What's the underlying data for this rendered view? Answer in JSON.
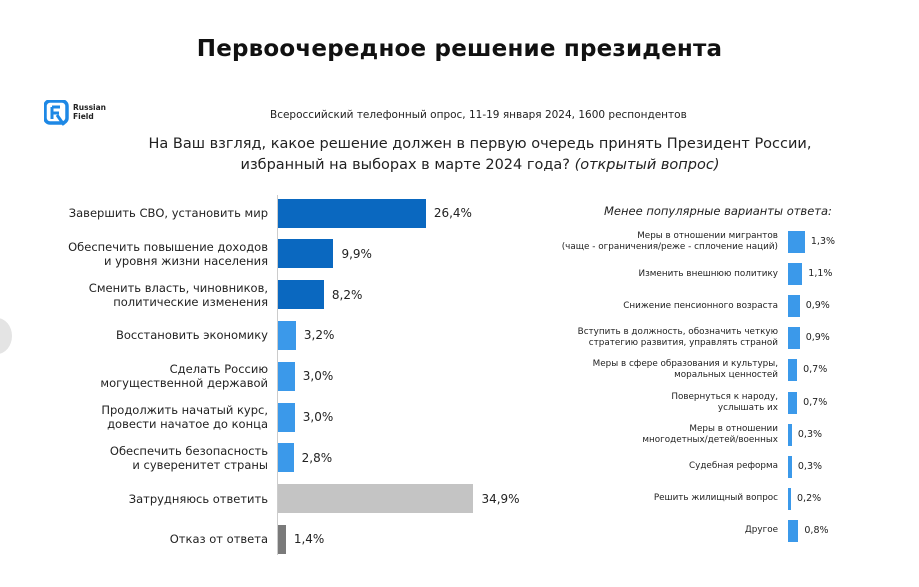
{
  "title": "Первоочередное решение президента",
  "logo": {
    "line1": "Russian",
    "line2": "Field",
    "brand_color": "#1e88e5"
  },
  "subtitle": "Всероссийский телефонный опрос, 11-19 января 2024, 1600 респондентов",
  "question": {
    "text": "На Ваш взгляд, какое решение должен в первую очередь принять Президент России, избранный на выборах в марте 2024 года?",
    "note": "(открытый вопрос)"
  },
  "colors": {
    "dark_blue": "#0a68c0",
    "light_blue": "#3b99ea",
    "gray": "#c4c4c4",
    "dark_gray": "#7a7a7a"
  },
  "chart_data": [
    {
      "type": "bar",
      "orientation": "horizontal",
      "categories": [
        "Завершить СВО, установить мир",
        "Обеспечить повышение доходов\nи уровня жизни населения",
        "Сменить власть, чиновников,\nполитические изменения",
        "Восстановить экономику",
        "Сделать Россию\nмогущественной державой",
        "Продолжить начатый курс,\nдовести начатое до конца",
        "Обеспечить безопасность\nи суверенитет страны",
        "Затрудняюсь ответить",
        "Отказ от ответа"
      ],
      "values": [
        26.4,
        9.9,
        8.2,
        3.2,
        3.0,
        3.0,
        2.8,
        34.9,
        1.4
      ],
      "labels": [
        "26,4%",
        "9,9%",
        "8,2%",
        "3,2%",
        "3,0%",
        "3,0%",
        "2,8%",
        "34,9%",
        "1,4%"
      ],
      "bar_colors": [
        "dark_blue",
        "dark_blue",
        "dark_blue",
        "light_blue",
        "light_blue",
        "light_blue",
        "light_blue",
        "gray",
        "dark_gray"
      ],
      "unit": "%"
    },
    {
      "type": "bar",
      "orientation": "horizontal",
      "title": "Менее популярные варианты ответа:",
      "categories": [
        "Меры в отношении мигрантов\n(чаще - ограничения/реже - сплочение наций)",
        "Изменить внешнюю политику",
        "Снижение пенсионного возраста",
        "Вступить в должность, обозначить четкую\nстратегию развития, управлять страной",
        "Меры в сфере образования и культуры,\nморальных ценностей",
        "Повернуться к народу,\nуслышать их",
        "Меры в отношении\nмногодетных/детей/военных",
        "Судебная реформа",
        "Решить жилищный вопрос",
        "Другое"
      ],
      "values": [
        1.3,
        1.1,
        0.9,
        0.9,
        0.7,
        0.7,
        0.3,
        0.3,
        0.2,
        0.8
      ],
      "labels": [
        "1,3%",
        "1,1%",
        "0,9%",
        "0,9%",
        "0,7%",
        "0,7%",
        "0,3%",
        "0,3%",
        "0,2%",
        "0,8%"
      ],
      "bar_color": "light_blue",
      "unit": "%"
    }
  ]
}
